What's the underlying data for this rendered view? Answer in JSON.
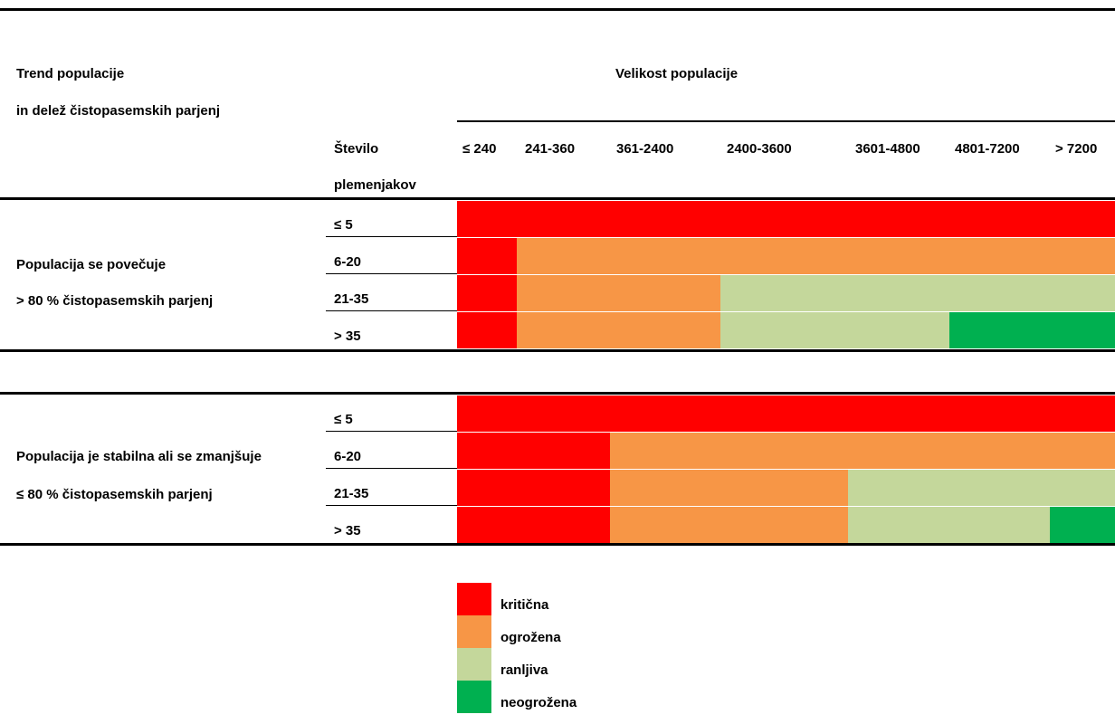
{
  "header": {
    "trend_line1": "Trend populacije",
    "trend_line2": "in delež čistopasemskih parjenj",
    "size_title": "Velikost populacije",
    "breeders_line1": "Število",
    "breeders_line2": "plemenjakov",
    "size_columns": [
      "≤ 240",
      "241-360",
      "361-2400",
      "2400-3600",
      "3601-4800",
      "4801-7200",
      "> 7200"
    ]
  },
  "colors": {
    "kriticna": "#ff0000",
    "ogrozena": "#f79646",
    "ranljiva": "#c4d79b",
    "neogrozena": "#00b050"
  },
  "blocks": [
    {
      "label_line1": "Populacija se povečuje",
      "label_line2": "> 80 % čistopasemskih parjenj",
      "rows": [
        {
          "breeders": "≤ 5",
          "cells": [
            "kriticna",
            "kriticna",
            "kriticna",
            "kriticna",
            "kriticna",
            "kriticna",
            "kriticna"
          ]
        },
        {
          "breeders": "6-20",
          "cells": [
            "kriticna",
            "ogrozena",
            "ogrozena",
            "ogrozena",
            "ogrozena",
            "ogrozena",
            "ogrozena"
          ]
        },
        {
          "breeders": "21-35",
          "cells": [
            "kriticna",
            "ogrozena",
            "ogrozena",
            "ranljiva",
            "ranljiva",
            "ranljiva",
            "ranljiva"
          ]
        },
        {
          "breeders": "> 35",
          "cells": [
            "kriticna",
            "ogrozena",
            "ogrozena",
            "ranljiva",
            "ranljiva",
            "neogrozena",
            "neogrozena"
          ]
        }
      ]
    },
    {
      "label_line1": "Populacija je stabilna ali se zmanjšuje",
      "label_line2": "≤ 80 % čistopasemskih parjenj",
      "rows": [
        {
          "breeders": "≤ 5",
          "cells": [
            "kriticna",
            "kriticna",
            "kriticna",
            "kriticna",
            "kriticna",
            "kriticna",
            "kriticna"
          ]
        },
        {
          "breeders": "6-20",
          "cells": [
            "kriticna",
            "kriticna",
            "ogrozena",
            "ogrozena",
            "ogrozena",
            "ogrozena",
            "ogrozena"
          ]
        },
        {
          "breeders": "21-35",
          "cells": [
            "kriticna",
            "kriticna",
            "ogrozena",
            "ogrozena",
            "ranljiva",
            "ranljiva",
            "ranljiva"
          ]
        },
        {
          "breeders": "> 35",
          "cells": [
            "kriticna",
            "kriticna",
            "ogrozena",
            "ogrozena",
            "ranljiva",
            "ranljiva",
            "neogrozena"
          ]
        }
      ]
    }
  ],
  "legend": [
    {
      "key": "kriticna",
      "label": "kritična"
    },
    {
      "key": "ogrozena",
      "label": "ogrožena"
    },
    {
      "key": "ranljiva",
      "label": "ranljiva"
    },
    {
      "key": "neogrozena",
      "label": "neogrožena"
    }
  ]
}
